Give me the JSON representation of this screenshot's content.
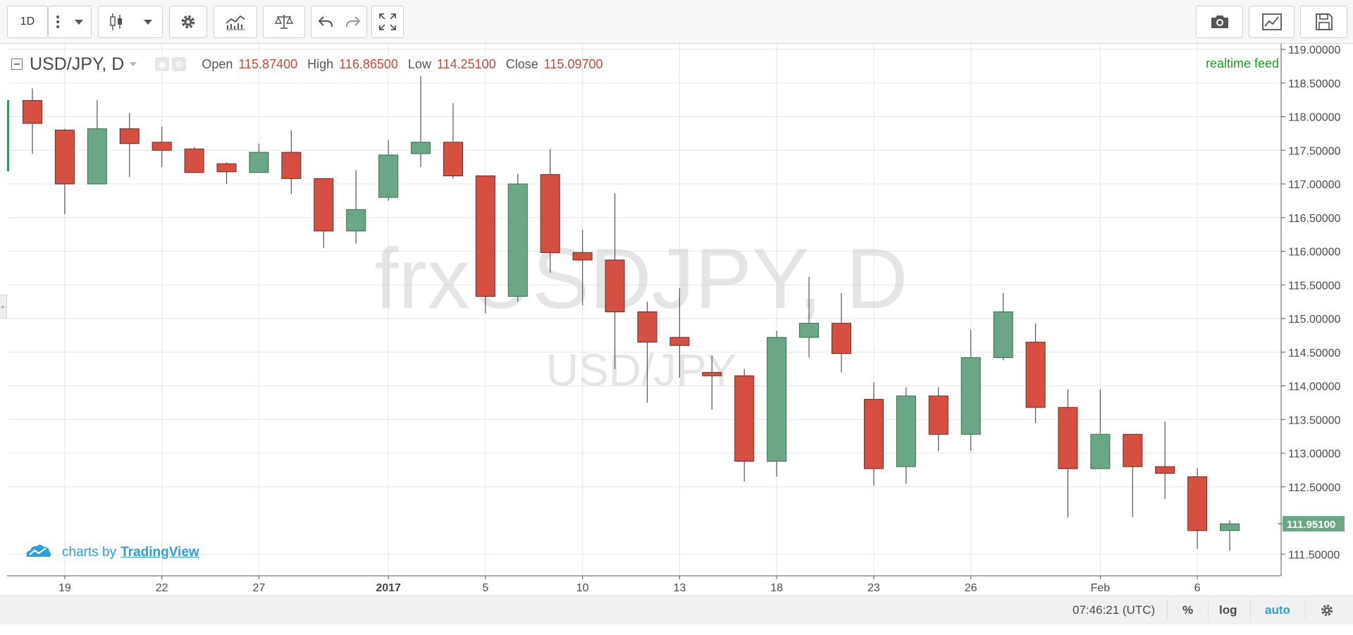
{
  "toolbar": {
    "interval_label": "1D",
    "icons": [
      "more-vert-icon",
      "dropdown-icon",
      "candles-icon",
      "dropdown-icon",
      "gear-icon",
      "indicators-icon",
      "compare-icon",
      "undo-icon",
      "redo-icon",
      "fullscreen-icon",
      "camera-icon",
      "chart-icon",
      "save-icon"
    ]
  },
  "legend": {
    "symbol": "USD/JPY, D",
    "open_label": "Open",
    "open_value": "115.87400",
    "high_label": "High",
    "high_value": "116.86500",
    "low_label": "Low",
    "low_value": "114.25100",
    "close_label": "Close",
    "close_value": "115.09700"
  },
  "feed_label": "realtime feed",
  "branding": {
    "prefix": "charts by",
    "brand": "TradingView"
  },
  "watermark": {
    "main": "frxUSDJPY, D",
    "sub": "USD/JPY"
  },
  "bottom_bar": {
    "clock": "07:46:21 (UTC)",
    "percent": "%",
    "log": "log",
    "auto": "auto"
  },
  "colors": {
    "up": "#6aa786",
    "down": "#d55040",
    "wick": "#555555",
    "grid": "#e7e7e7",
    "last_price_bg": "#6aa786",
    "feed": "#1e9b22",
    "brand": "#2aa1d8"
  },
  "chart_data": {
    "type": "candlestick",
    "ylim": [
      111.3,
      119.0
    ],
    "y_ticks": [
      "119.00000",
      "118.50000",
      "118.00000",
      "117.50000",
      "117.00000",
      "116.50000",
      "116.00000",
      "115.50000",
      "115.00000",
      "114.50000",
      "114.00000",
      "113.50000",
      "113.00000",
      "112.50000",
      "111.50000"
    ],
    "x_ticks": [
      {
        "label": "19",
        "i": 1,
        "bold": false
      },
      {
        "label": "22",
        "i": 4,
        "bold": false
      },
      {
        "label": "27",
        "i": 7,
        "bold": false
      },
      {
        "label": "2017",
        "i": 11,
        "bold": true
      },
      {
        "label": "5",
        "i": 14,
        "bold": false
      },
      {
        "label": "10",
        "i": 17,
        "bold": false
      },
      {
        "label": "13",
        "i": 20,
        "bold": false
      },
      {
        "label": "18",
        "i": 23,
        "bold": false
      },
      {
        "label": "23",
        "i": 26,
        "bold": false
      },
      {
        "label": "26",
        "i": 29,
        "bold": false
      },
      {
        "label": "Feb",
        "i": 33,
        "bold": false
      },
      {
        "label": "6",
        "i": 36,
        "bold": false
      }
    ],
    "last_price": "111.95100",
    "last_price_value": 111.951,
    "candles": [
      {
        "o": 118.24,
        "h": 118.42,
        "l": 117.45,
        "c": 117.9
      },
      {
        "o": 117.8,
        "h": 117.82,
        "l": 116.55,
        "c": 117.0
      },
      {
        "o": 117.0,
        "h": 118.25,
        "l": 117.0,
        "c": 117.82
      },
      {
        "o": 117.82,
        "h": 118.05,
        "l": 117.1,
        "c": 117.6
      },
      {
        "o": 117.62,
        "h": 117.85,
        "l": 117.25,
        "c": 117.5
      },
      {
        "o": 117.52,
        "h": 117.55,
        "l": 117.17,
        "c": 117.17
      },
      {
        "o": 117.3,
        "h": 117.32,
        "l": 117.0,
        "c": 117.18
      },
      {
        "o": 117.17,
        "h": 117.6,
        "l": 117.17,
        "c": 117.47
      },
      {
        "o": 117.47,
        "h": 117.8,
        "l": 116.85,
        "c": 117.08
      },
      {
        "o": 117.08,
        "h": 117.08,
        "l": 116.05,
        "c": 116.3
      },
      {
        "o": 116.3,
        "h": 117.2,
        "l": 116.12,
        "c": 116.62
      },
      {
        "o": 116.8,
        "h": 117.65,
        "l": 116.75,
        "c": 117.43
      },
      {
        "o": 117.45,
        "h": 118.6,
        "l": 117.25,
        "c": 117.62
      },
      {
        "o": 117.62,
        "h": 118.2,
        "l": 117.08,
        "c": 117.12
      },
      {
        "o": 117.12,
        "h": 117.12,
        "l": 115.08,
        "c": 115.33
      },
      {
        "o": 115.33,
        "h": 117.15,
        "l": 115.25,
        "c": 117.0
      },
      {
        "o": 117.14,
        "h": 117.52,
        "l": 115.68,
        "c": 115.98
      },
      {
        "o": 115.98,
        "h": 116.32,
        "l": 115.2,
        "c": 115.87
      },
      {
        "o": 115.87,
        "h": 116.86,
        "l": 114.25,
        "c": 115.1
      },
      {
        "o": 115.1,
        "h": 115.25,
        "l": 113.75,
        "c": 114.65
      },
      {
        "o": 114.72,
        "h": 115.45,
        "l": 114.12,
        "c": 114.6
      },
      {
        "o": 114.2,
        "h": 114.45,
        "l": 113.65,
        "c": 114.15
      },
      {
        "o": 114.15,
        "h": 114.25,
        "l": 112.58,
        "c": 112.88
      },
      {
        "o": 112.88,
        "h": 114.82,
        "l": 112.65,
        "c": 114.72
      },
      {
        "o": 114.72,
        "h": 115.62,
        "l": 114.42,
        "c": 114.93
      },
      {
        "o": 114.93,
        "h": 115.38,
        "l": 114.2,
        "c": 114.48
      },
      {
        "o": 113.8,
        "h": 114.05,
        "l": 112.52,
        "c": 112.77
      },
      {
        "o": 112.8,
        "h": 113.98,
        "l": 112.55,
        "c": 113.85
      },
      {
        "o": 113.85,
        "h": 113.98,
        "l": 113.03,
        "c": 113.28
      },
      {
        "o": 113.28,
        "h": 114.83,
        "l": 113.03,
        "c": 114.42
      },
      {
        "o": 114.42,
        "h": 115.38,
        "l": 114.38,
        "c": 115.1
      },
      {
        "o": 114.65,
        "h": 114.93,
        "l": 113.45,
        "c": 113.68
      },
      {
        "o": 113.68,
        "h": 113.95,
        "l": 112.05,
        "c": 112.77
      },
      {
        "o": 112.77,
        "h": 113.95,
        "l": 112.77,
        "c": 113.28
      },
      {
        "o": 113.28,
        "h": 113.28,
        "l": 112.05,
        "c": 112.8
      },
      {
        "o": 112.8,
        "h": 113.47,
        "l": 112.32,
        "c": 112.7
      },
      {
        "o": 112.65,
        "h": 112.78,
        "l": 111.58,
        "c": 111.85
      },
      {
        "o": 111.85,
        "h": 112.0,
        "l": 111.55,
        "c": 111.95
      }
    ]
  }
}
